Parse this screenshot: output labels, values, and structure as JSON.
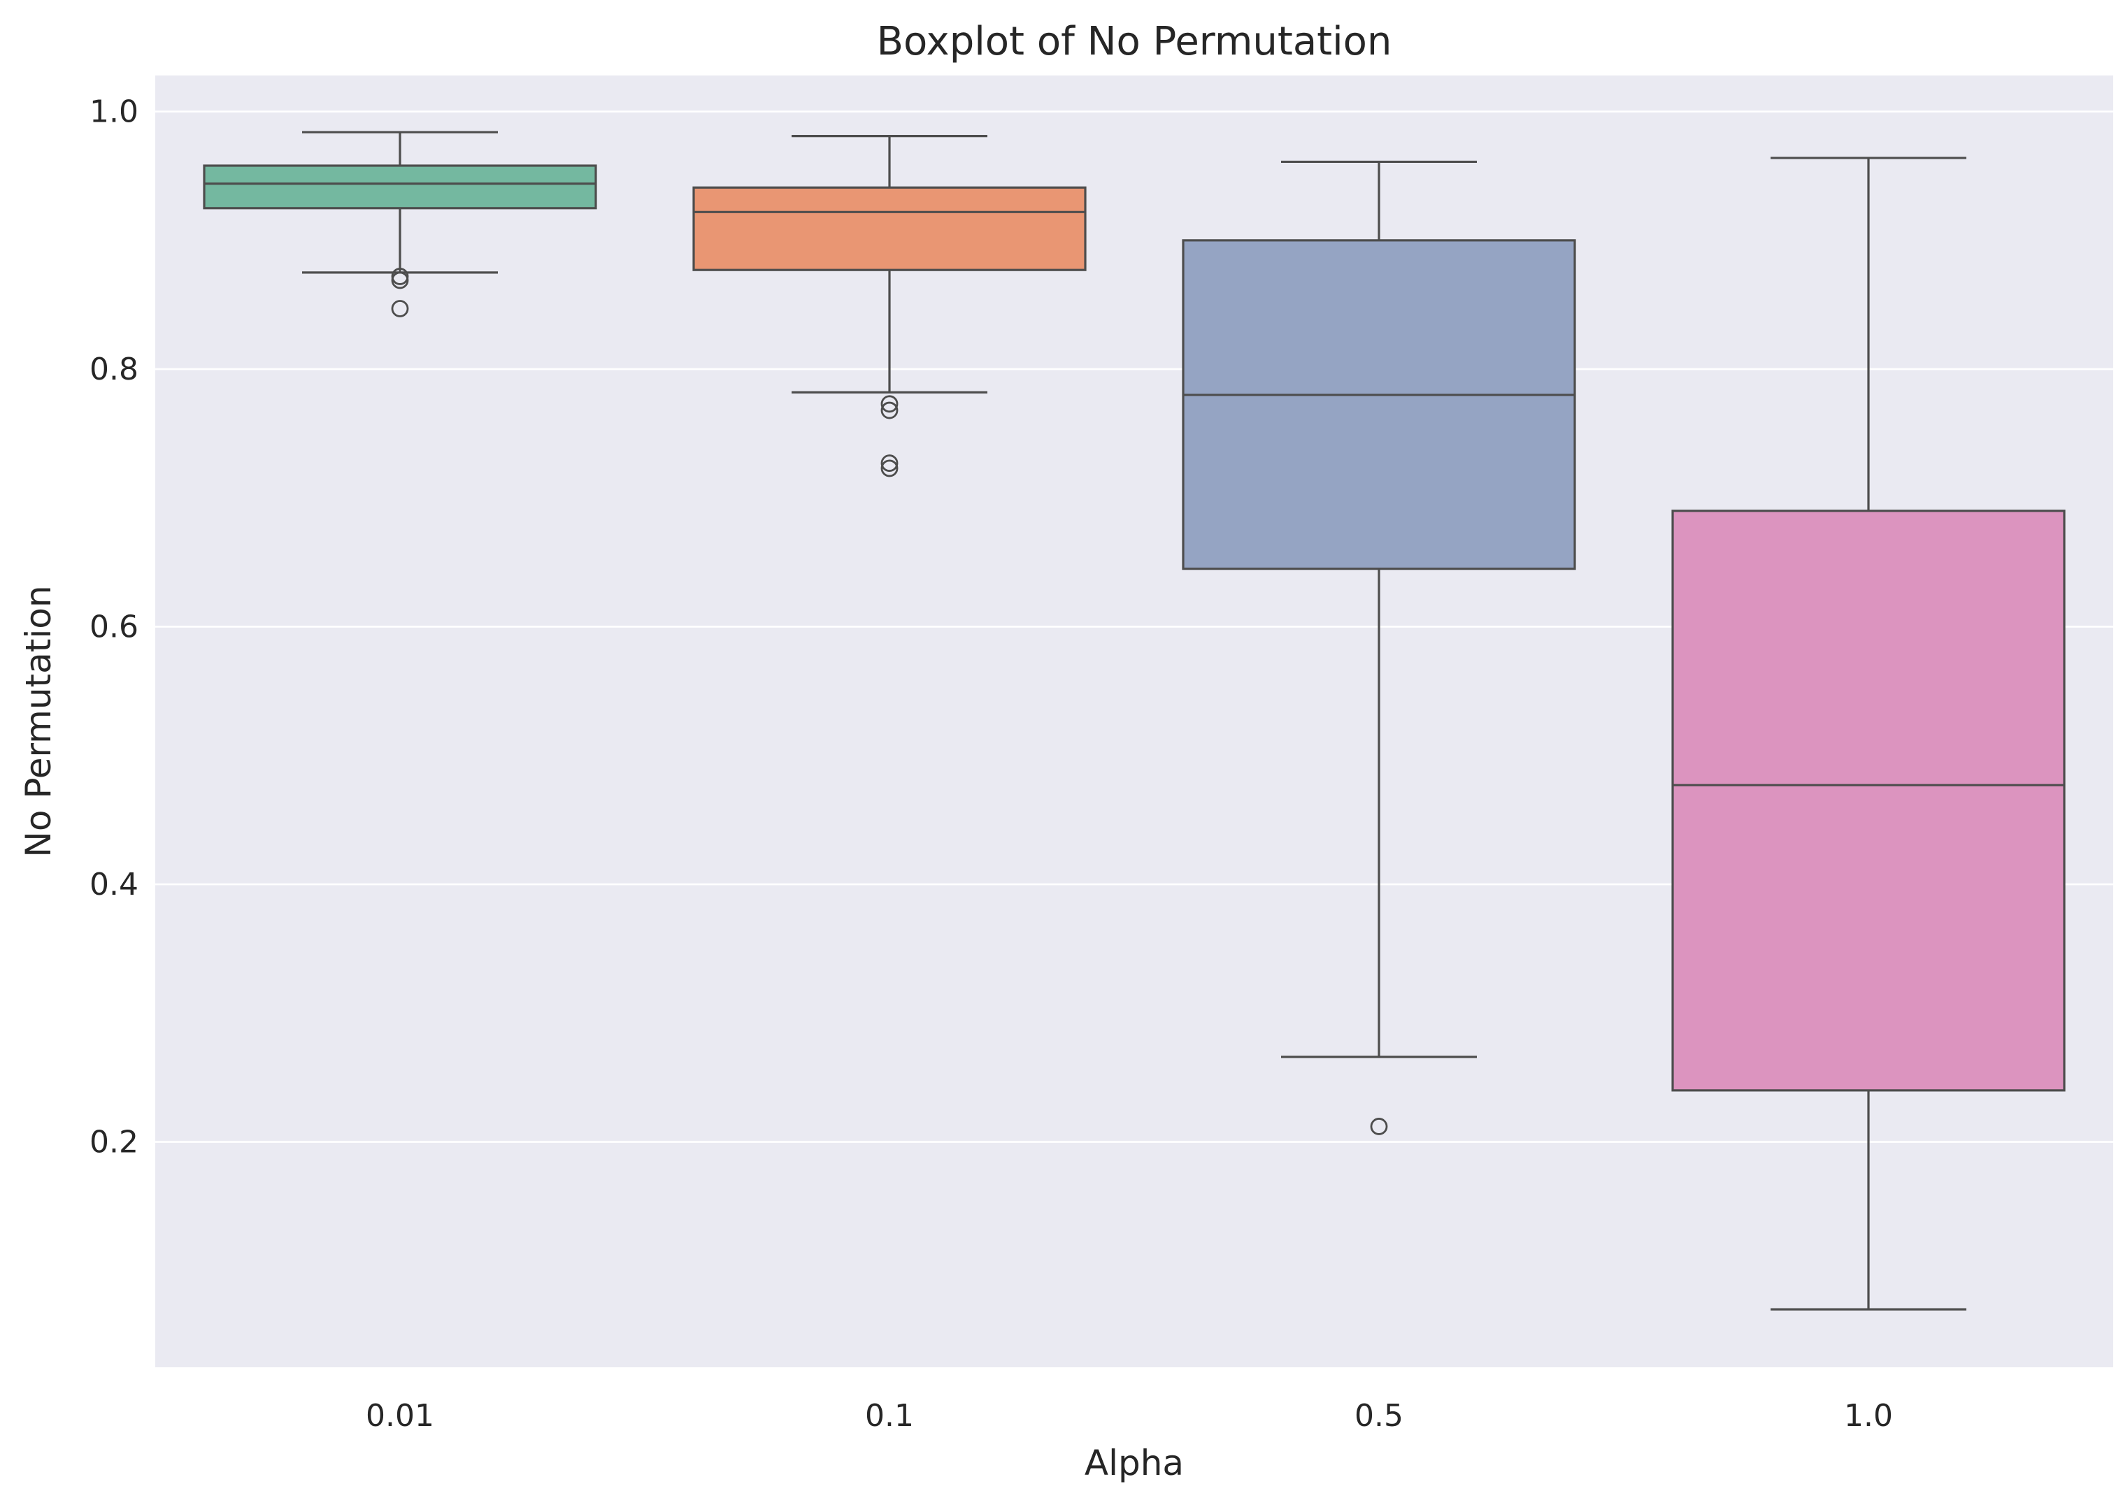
{
  "chart_data": {
    "type": "box",
    "title": "Boxplot of No Permutation",
    "xlabel": "Alpha",
    "ylabel": "No Permutation",
    "ylim": [
      0.025,
      1.028
    ],
    "yticks": [
      0.2,
      0.4,
      0.6,
      0.8,
      1.0
    ],
    "ytick_labels": [
      "0.2",
      "0.4",
      "0.6",
      "0.8",
      "1.0"
    ],
    "grid": true,
    "background": "#eaeaf2",
    "grid_color": "#ffffff",
    "line_color": "#4d4d4d",
    "categories": [
      "0.01",
      "0.1",
      "0.5",
      "1.0"
    ],
    "boxes": [
      {
        "category": "0.01",
        "color": "#74b8a0",
        "whisker_low": 0.875,
        "q1": 0.925,
        "median": 0.944,
        "q3": 0.958,
        "whisker_high": 0.984,
        "outliers": [
          0.872,
          0.869,
          0.847
        ]
      },
      {
        "category": "0.1",
        "color": "#e99673",
        "whisker_low": 0.782,
        "q1": 0.877,
        "median": 0.922,
        "q3": 0.941,
        "whisker_high": 0.981,
        "outliers": [
          0.773,
          0.768,
          0.727,
          0.723
        ]
      },
      {
        "category": "0.5",
        "color": "#95a4c3",
        "whisker_low": 0.266,
        "q1": 0.645,
        "median": 0.78,
        "q3": 0.9,
        "whisker_high": 0.961,
        "outliers": [
          0.212
        ]
      },
      {
        "category": "1.0",
        "color": "#dc94bf",
        "whisker_low": 0.07,
        "q1": 0.24,
        "median": 0.477,
        "q3": 0.69,
        "whisker_high": 0.964,
        "outliers": []
      }
    ]
  }
}
